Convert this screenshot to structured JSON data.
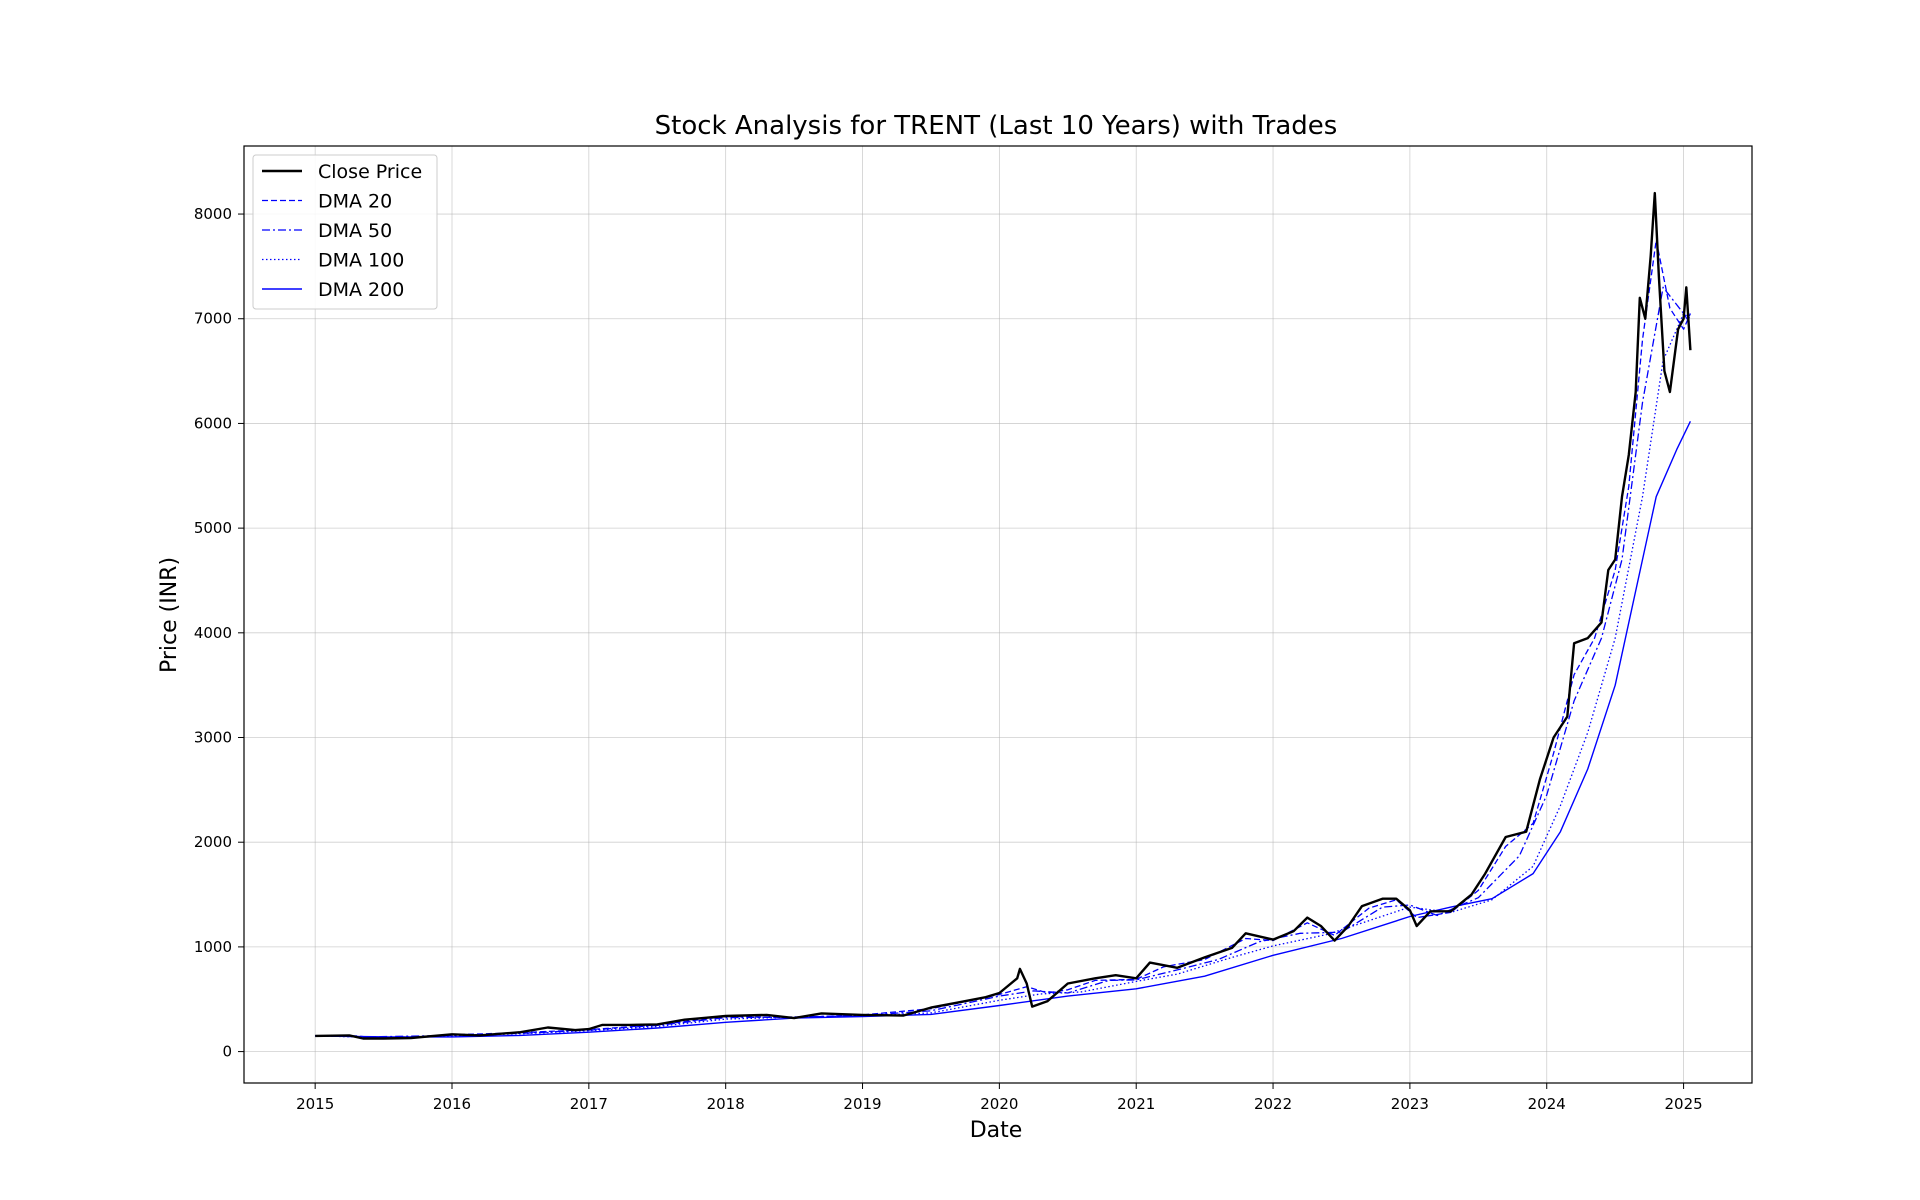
{
  "chart_data": {
    "type": "line",
    "title": "Stock Analysis for TRENT (Last 10 Years) with Trades",
    "xlabel": "Date",
    "ylabel": "Price (INR)",
    "xlim": [
      2014.48,
      2025.5
    ],
    "ylim": [
      -300,
      8650
    ],
    "x_ticks": [
      2015,
      2016,
      2017,
      2018,
      2019,
      2020,
      2021,
      2022,
      2023,
      2024,
      2025
    ],
    "x_tick_labels": [
      "2015",
      "2016",
      "2017",
      "2018",
      "2019",
      "2020",
      "2021",
      "2022",
      "2023",
      "2024",
      "2025"
    ],
    "y_ticks": [
      0,
      1000,
      2000,
      3000,
      4000,
      5000,
      6000,
      7000,
      8000
    ],
    "y_tick_labels": [
      "0",
      "1000",
      "2000",
      "3000",
      "4000",
      "5000",
      "6000",
      "7000",
      "8000"
    ],
    "grid": true,
    "legend_position": "top-left",
    "series": [
      {
        "name": "Close Price",
        "color": "#000000",
        "style": "solid-thick",
        "points": [
          [
            2015.0,
            150
          ],
          [
            2015.25,
            155
          ],
          [
            2015.35,
            125
          ],
          [
            2015.5,
            125
          ],
          [
            2015.7,
            130
          ],
          [
            2016.0,
            165
          ],
          [
            2016.2,
            155
          ],
          [
            2016.5,
            185
          ],
          [
            2016.7,
            230
          ],
          [
            2016.9,
            205
          ],
          [
            2017.0,
            215
          ],
          [
            2017.1,
            255
          ],
          [
            2017.3,
            255
          ],
          [
            2017.5,
            260
          ],
          [
            2017.7,
            305
          ],
          [
            2018.0,
            340
          ],
          [
            2018.3,
            350
          ],
          [
            2018.5,
            320
          ],
          [
            2018.7,
            365
          ],
          [
            2019.0,
            350
          ],
          [
            2019.3,
            345
          ],
          [
            2019.5,
            420
          ],
          [
            2019.7,
            470
          ],
          [
            2019.9,
            520
          ],
          [
            2020.0,
            560
          ],
          [
            2020.13,
            700
          ],
          [
            2020.15,
            790
          ],
          [
            2020.2,
            650
          ],
          [
            2020.24,
            430
          ],
          [
            2020.35,
            480
          ],
          [
            2020.5,
            650
          ],
          [
            2020.7,
            700
          ],
          [
            2020.85,
            730
          ],
          [
            2021.0,
            700
          ],
          [
            2021.1,
            850
          ],
          [
            2021.3,
            800
          ],
          [
            2021.5,
            900
          ],
          [
            2021.7,
            990
          ],
          [
            2021.8,
            1130
          ],
          [
            2022.0,
            1070
          ],
          [
            2022.15,
            1150
          ],
          [
            2022.25,
            1280
          ],
          [
            2022.35,
            1200
          ],
          [
            2022.45,
            1060
          ],
          [
            2022.55,
            1200
          ],
          [
            2022.65,
            1390
          ],
          [
            2022.8,
            1460
          ],
          [
            2022.9,
            1460
          ],
          [
            2023.0,
            1350
          ],
          [
            2023.05,
            1200
          ],
          [
            2023.15,
            1340
          ],
          [
            2023.3,
            1340
          ],
          [
            2023.45,
            1500
          ],
          [
            2023.55,
            1700
          ],
          [
            2023.7,
            2050
          ],
          [
            2023.85,
            2100
          ],
          [
            2023.95,
            2600
          ],
          [
            2024.05,
            3000
          ],
          [
            2024.15,
            3200
          ],
          [
            2024.2,
            3900
          ],
          [
            2024.3,
            3950
          ],
          [
            2024.4,
            4100
          ],
          [
            2024.45,
            4600
          ],
          [
            2024.5,
            4700
          ],
          [
            2024.55,
            5300
          ],
          [
            2024.6,
            5700
          ],
          [
            2024.65,
            6300
          ],
          [
            2024.68,
            7200
          ],
          [
            2024.72,
            7000
          ],
          [
            2024.76,
            7600
          ],
          [
            2024.79,
            8200
          ],
          [
            2024.82,
            7400
          ],
          [
            2024.86,
            6500
          ],
          [
            2024.9,
            6300
          ],
          [
            2024.96,
            6900
          ],
          [
            2025.0,
            7000
          ],
          [
            2025.02,
            7300
          ],
          [
            2025.05,
            6700
          ]
        ]
      },
      {
        "name": "DMA 20",
        "color": "#0000ff",
        "style": "dashed",
        "points": [
          [
            2015.0,
            150
          ],
          [
            2015.3,
            150
          ],
          [
            2015.5,
            125
          ],
          [
            2016.0,
            160
          ],
          [
            2016.5,
            180
          ],
          [
            2017.0,
            210
          ],
          [
            2017.5,
            255
          ],
          [
            2018.0,
            335
          ],
          [
            2018.5,
            325
          ],
          [
            2019.0,
            350
          ],
          [
            2019.5,
            410
          ],
          [
            2020.0,
            545
          ],
          [
            2020.2,
            620
          ],
          [
            2020.35,
            560
          ],
          [
            2020.5,
            590
          ],
          [
            2020.7,
            680
          ],
          [
            2021.0,
            690
          ],
          [
            2021.2,
            810
          ],
          [
            2021.5,
            880
          ],
          [
            2021.8,
            1080
          ],
          [
            2022.0,
            1060
          ],
          [
            2022.25,
            1230
          ],
          [
            2022.45,
            1110
          ],
          [
            2022.7,
            1370
          ],
          [
            2022.9,
            1450
          ],
          [
            2023.05,
            1280
          ],
          [
            2023.3,
            1330
          ],
          [
            2023.5,
            1540
          ],
          [
            2023.7,
            1960
          ],
          [
            2023.9,
            2180
          ],
          [
            2024.05,
            2850
          ],
          [
            2024.2,
            3600
          ],
          [
            2024.35,
            3950
          ],
          [
            2024.5,
            4600
          ],
          [
            2024.6,
            5400
          ],
          [
            2024.7,
            6800
          ],
          [
            2024.8,
            7750
          ],
          [
            2024.9,
            7100
          ],
          [
            2025.0,
            6900
          ],
          [
            2025.05,
            7050
          ]
        ]
      },
      {
        "name": "DMA 50",
        "color": "#0000ff",
        "style": "dashdot",
        "points": [
          [
            2015.0,
            150
          ],
          [
            2015.4,
            140
          ],
          [
            2016.0,
            155
          ],
          [
            2016.5,
            175
          ],
          [
            2017.0,
            205
          ],
          [
            2017.5,
            250
          ],
          [
            2018.0,
            325
          ],
          [
            2018.5,
            330
          ],
          [
            2019.0,
            345
          ],
          [
            2019.5,
            390
          ],
          [
            2020.0,
            530
          ],
          [
            2020.25,
            580
          ],
          [
            2020.5,
            560
          ],
          [
            2020.8,
            680
          ],
          [
            2021.0,
            685
          ],
          [
            2021.3,
            780
          ],
          [
            2021.6,
            880
          ],
          [
            2021.9,
            1050
          ],
          [
            2022.2,
            1130
          ],
          [
            2022.5,
            1140
          ],
          [
            2022.8,
            1380
          ],
          [
            2023.0,
            1400
          ],
          [
            2023.2,
            1300
          ],
          [
            2023.5,
            1470
          ],
          [
            2023.8,
            1870
          ],
          [
            2024.0,
            2450
          ],
          [
            2024.2,
            3350
          ],
          [
            2024.4,
            3950
          ],
          [
            2024.55,
            4700
          ],
          [
            2024.7,
            6200
          ],
          [
            2024.85,
            7300
          ],
          [
            2025.0,
            7050
          ],
          [
            2025.05,
            6950
          ]
        ]
      },
      {
        "name": "DMA 100",
        "color": "#0000ff",
        "style": "dotted",
        "points": [
          [
            2015.0,
            150
          ],
          [
            2015.5,
            135
          ],
          [
            2016.0,
            150
          ],
          [
            2016.5,
            170
          ],
          [
            2017.0,
            200
          ],
          [
            2017.5,
            240
          ],
          [
            2018.0,
            310
          ],
          [
            2018.5,
            330
          ],
          [
            2019.0,
            340
          ],
          [
            2019.5,
            370
          ],
          [
            2020.0,
            490
          ],
          [
            2020.3,
            550
          ],
          [
            2020.6,
            570
          ],
          [
            2021.0,
            670
          ],
          [
            2021.3,
            740
          ],
          [
            2021.7,
            900
          ],
          [
            2022.0,
            1010
          ],
          [
            2022.4,
            1120
          ],
          [
            2022.7,
            1250
          ],
          [
            2023.0,
            1380
          ],
          [
            2023.3,
            1330
          ],
          [
            2023.6,
            1450
          ],
          [
            2023.9,
            1770
          ],
          [
            2024.1,
            2350
          ],
          [
            2024.3,
            3050
          ],
          [
            2024.5,
            3950
          ],
          [
            2024.7,
            5300
          ],
          [
            2024.85,
            6600
          ],
          [
            2025.0,
            7050
          ],
          [
            2025.05,
            7000
          ]
        ]
      },
      {
        "name": "DMA 200",
        "color": "#0000ff",
        "style": "solid",
        "points": [
          [
            2015.0,
            150
          ],
          [
            2015.5,
            140
          ],
          [
            2016.0,
            140
          ],
          [
            2016.5,
            155
          ],
          [
            2017.0,
            185
          ],
          [
            2017.5,
            225
          ],
          [
            2018.0,
            280
          ],
          [
            2018.5,
            320
          ],
          [
            2019.0,
            335
          ],
          [
            2019.5,
            355
          ],
          [
            2020.0,
            440
          ],
          [
            2020.5,
            530
          ],
          [
            2021.0,
            600
          ],
          [
            2021.5,
            720
          ],
          [
            2022.0,
            920
          ],
          [
            2022.5,
            1080
          ],
          [
            2023.0,
            1290
          ],
          [
            2023.3,
            1380
          ],
          [
            2023.6,
            1460
          ],
          [
            2023.9,
            1700
          ],
          [
            2024.1,
            2100
          ],
          [
            2024.3,
            2700
          ],
          [
            2024.5,
            3500
          ],
          [
            2024.65,
            4400
          ],
          [
            2024.8,
            5300
          ],
          [
            2024.95,
            5750
          ],
          [
            2025.05,
            6020
          ]
        ]
      }
    ]
  }
}
